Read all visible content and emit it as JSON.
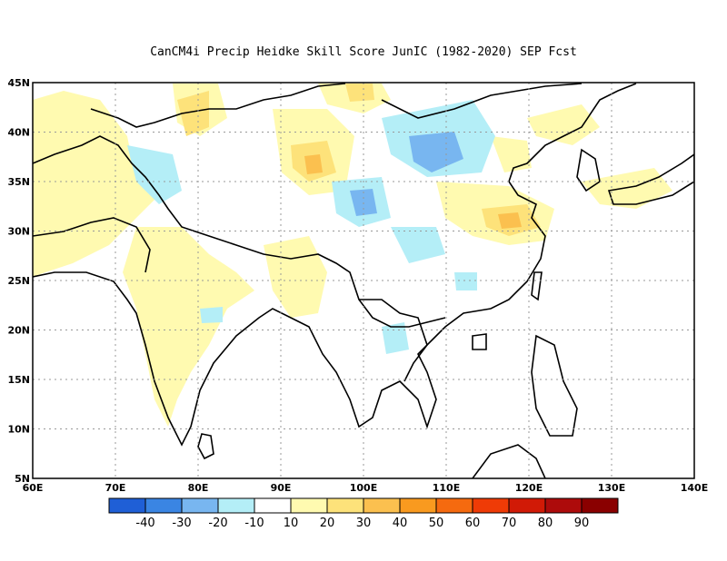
{
  "title": "CanCM4i Precip Heidke Skill Score JunIC (1982-2020) SEP Fcst",
  "map": {
    "lon_range": [
      60,
      140
    ],
    "lat_range": [
      5,
      45
    ],
    "x_ticks": [
      "60E",
      "70E",
      "80E",
      "90E",
      "100E",
      "110E",
      "120E",
      "130E",
      "140E"
    ],
    "y_ticks": [
      "5N",
      "10N",
      "15N",
      "20N",
      "25N",
      "30N",
      "35N",
      "40N",
      "45N"
    ],
    "gridlines": "dotted"
  },
  "colorbar": {
    "colors": [
      "#1f5fd6",
      "#3a85e3",
      "#78b6f0",
      "#b4eef7",
      "#ffffff",
      "#fffab0",
      "#fde27a",
      "#fbc04f",
      "#f99a1f",
      "#f56a0f",
      "#ef3b06",
      "#d11a06",
      "#ad0b0b",
      "#8a0000"
    ],
    "labels": [
      "-40",
      "-30",
      "-20",
      "-10",
      "10",
      "20",
      "30",
      "40",
      "50",
      "60",
      "70",
      "80",
      "90"
    ]
  }
}
